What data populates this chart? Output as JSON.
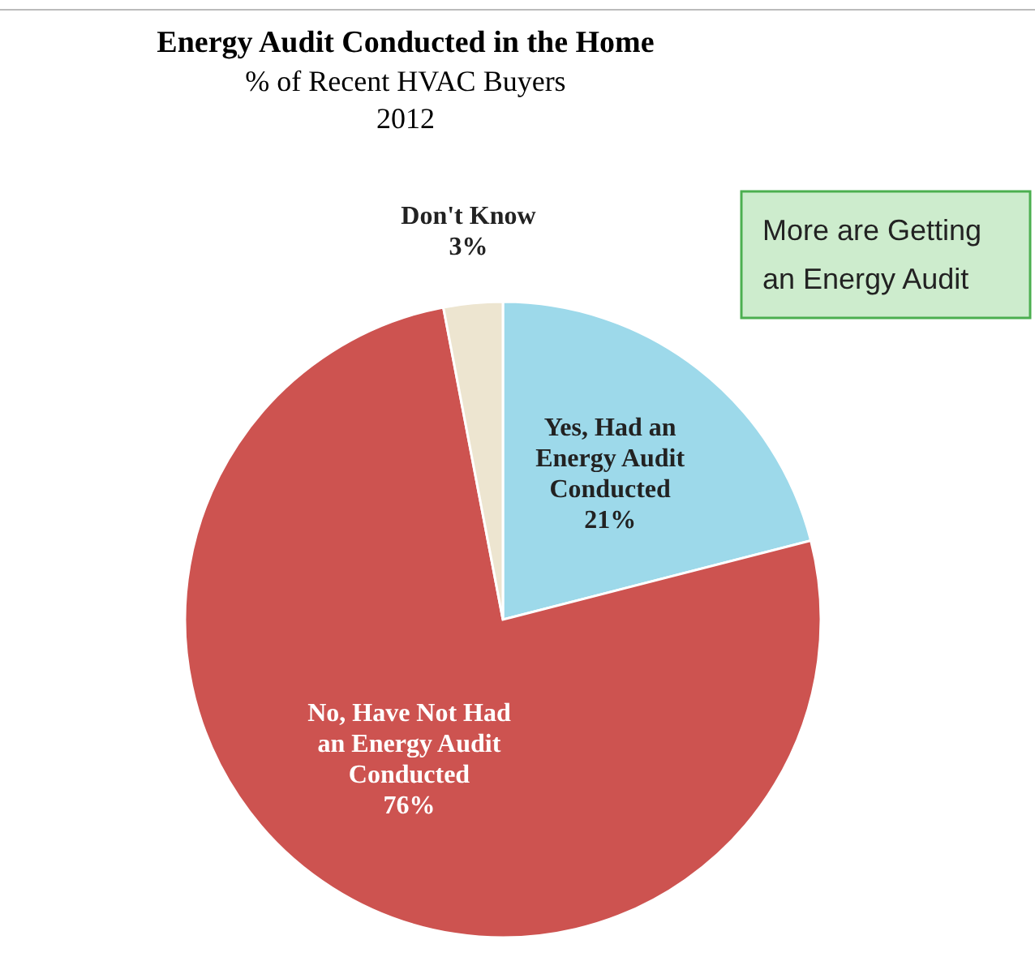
{
  "chart_data": {
    "type": "pie",
    "title": "Energy Audit Conducted in the Home",
    "subtitle": "% of Recent HVAC Buyers\n2012",
    "categories": [
      "Yes, Had an Energy Audit Conducted",
      "No, Have Not Had an Energy Audit Conducted",
      "Don't Know"
    ],
    "values": [
      21,
      76,
      3
    ],
    "colors": [
      "#9dd9ea",
      "#cd5350",
      "#ede5d0"
    ],
    "value_labels": [
      "21%",
      "76%",
      "3%"
    ],
    "annotations": [
      "More are Getting\nan Energy Audit"
    ]
  }
}
